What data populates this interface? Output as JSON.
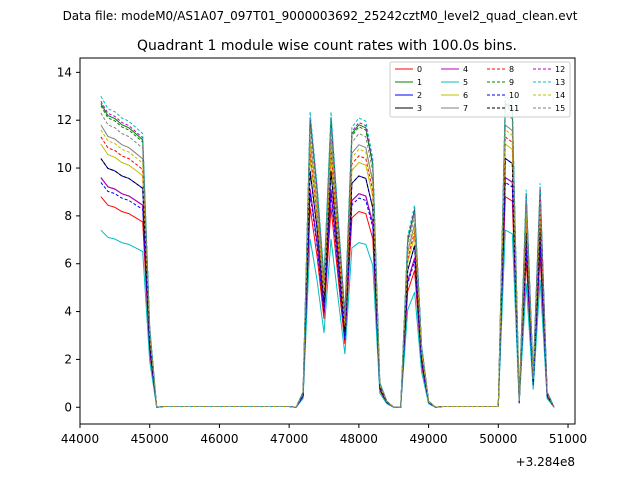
{
  "suptitle": "Data file: modeM0/AS1A07_097T01_9000003692_25242cztM0_level2_quad_clean.evt",
  "chart_data": {
    "type": "line",
    "title": "Quadrant 1 module wise count rates with 100.0s bins.",
    "xlabel": "",
    "ylabel": "",
    "x_offset_label": "+3.284e8",
    "xlim": [
      44000,
      51100
    ],
    "ylim": [
      -0.7,
      14.6
    ],
    "xticks": [
      44000,
      45000,
      46000,
      47000,
      48000,
      49000,
      50000,
      51000
    ],
    "xtick_labels": [
      "44000",
      "45000",
      "46000",
      "47000",
      "48000",
      "49000",
      "50000",
      "51000"
    ],
    "yticks": [
      0,
      2,
      4,
      6,
      8,
      10,
      12,
      14
    ],
    "ytick_labels": [
      "0",
      "2",
      "4",
      "6",
      "8",
      "10",
      "12",
      "14"
    ],
    "grid": false,
    "legend": {
      "position": "top-right",
      "columns": 4
    },
    "series": [
      {
        "name": "0",
        "color": "#ff0000",
        "dash": "solid"
      },
      {
        "name": "1",
        "color": "#008000",
        "dash": "solid"
      },
      {
        "name": "2",
        "color": "#0000ff",
        "dash": "solid"
      },
      {
        "name": "3",
        "color": "#000000",
        "dash": "solid"
      },
      {
        "name": "4",
        "color": "#bf00bf",
        "dash": "solid"
      },
      {
        "name": "5",
        "color": "#00bfbf",
        "dash": "solid"
      },
      {
        "name": "6",
        "color": "#bfbf00",
        "dash": "solid"
      },
      {
        "name": "7",
        "color": "#808080",
        "dash": "solid"
      },
      {
        "name": "8",
        "color": "#ff0000",
        "dash": "dashed"
      },
      {
        "name": "9",
        "color": "#008000",
        "dash": "dashed"
      },
      {
        "name": "10",
        "color": "#0000ff",
        "dash": "dashed"
      },
      {
        "name": "11",
        "color": "#000000",
        "dash": "dashed"
      },
      {
        "name": "12",
        "color": "#bf00bf",
        "dash": "dashed"
      },
      {
        "name": "13",
        "color": "#00bfbf",
        "dash": "dashed"
      },
      {
        "name": "14",
        "color": "#bfbf00",
        "dash": "dashed"
      },
      {
        "name": "15",
        "color": "#808080",
        "dash": "dashed"
      }
    ],
    "x_values": [
      44300,
      44400,
      44500,
      44600,
      44700,
      44800,
      44900,
      45000,
      45100,
      45200,
      45300,
      45400,
      45500,
      45600,
      45700,
      45800,
      45900,
      46000,
      46100,
      46200,
      46300,
      46400,
      46500,
      46600,
      46700,
      46800,
      46900,
      47000,
      47100,
      47200,
      47300,
      47400,
      47500,
      47600,
      47700,
      47800,
      47900,
      48000,
      48100,
      48200,
      48300,
      48400,
      48500,
      48600,
      48700,
      48800,
      48900,
      49000,
      49100,
      49200,
      49300,
      49400,
      49500,
      49600,
      49700,
      49800,
      49900,
      50000,
      50100,
      50200,
      50300,
      50400,
      50500,
      50600,
      50700,
      50800
    ],
    "active_segments": [
      {
        "x": [
          44300,
          44400,
          44500,
          44600,
          44700,
          44800,
          44900,
          45000,
          45100
        ],
        "profile": [
          1.0,
          0.96,
          0.95,
          0.93,
          0.92,
          0.9,
          0.88,
          0.26,
          0.0
        ]
      },
      {
        "x": [
          47100,
          47200,
          47300,
          47400,
          47500,
          47600,
          47700,
          47800,
          47900,
          48000,
          48100,
          48200,
          48300,
          48400,
          48500,
          48600,
          48700,
          48800,
          48900,
          49000,
          49100
        ],
        "profile": [
          0.0,
          0.05,
          0.95,
          0.72,
          0.42,
          0.95,
          0.62,
          0.3,
          0.9,
          0.93,
          0.92,
          0.8,
          0.08,
          0.02,
          0.0,
          0.0,
          0.55,
          0.65,
          0.2,
          0.02,
          0.0
        ]
      },
      {
        "x": [
          50100,
          50200,
          50300,
          50400,
          50500,
          50600,
          50700,
          50800
        ],
        "profile": [
          1.0,
          0.98,
          0.02,
          0.7,
          0.1,
          0.72,
          0.05,
          0.0
        ]
      }
    ],
    "series_levels": [
      8.8,
      12.7,
      10.4,
      9.6,
      9.6,
      7.4,
      11.0,
      11.8,
      11.3,
      12.6,
      9.4,
      10.4,
      12.8,
      13.0,
      11.6,
      12.3
    ]
  }
}
